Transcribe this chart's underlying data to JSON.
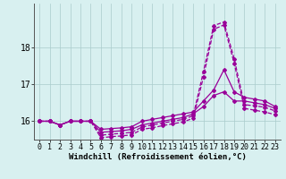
{
  "xlabel": "Windchill (Refroidissement éolien,°C)",
  "bg_color": "#d8f0f0",
  "line_color": "#990099",
  "grid_color": "#aacccc",
  "x": [
    0,
    1,
    2,
    3,
    4,
    5,
    6,
    7,
    8,
    9,
    10,
    11,
    12,
    13,
    14,
    15,
    16,
    17,
    18,
    19,
    20,
    21,
    22,
    23
  ],
  "series": [
    [
      16.0,
      16.0,
      15.9,
      16.0,
      16.0,
      16.0,
      15.78,
      15.8,
      15.82,
      15.85,
      16.0,
      16.05,
      16.1,
      16.15,
      16.2,
      16.25,
      16.55,
      16.85,
      17.4,
      16.8,
      16.65,
      16.6,
      16.55,
      16.4
    ],
    [
      16.0,
      16.0,
      15.9,
      16.0,
      16.0,
      16.0,
      15.7,
      15.72,
      15.74,
      15.78,
      15.9,
      15.95,
      16.0,
      16.05,
      16.1,
      16.2,
      16.4,
      16.7,
      16.8,
      16.55,
      16.55,
      16.5,
      16.45,
      16.35
    ],
    [
      16.0,
      16.0,
      15.9,
      16.0,
      16.0,
      16.0,
      15.62,
      15.65,
      15.67,
      15.7,
      15.84,
      15.9,
      15.95,
      16.0,
      16.05,
      16.15,
      17.35,
      18.6,
      18.7,
      17.7,
      16.45,
      16.42,
      16.38,
      16.28
    ],
    [
      16.0,
      16.0,
      15.9,
      16.0,
      16.0,
      16.0,
      15.55,
      15.58,
      15.6,
      15.63,
      15.78,
      15.82,
      15.88,
      15.93,
      15.98,
      16.08,
      17.2,
      18.5,
      18.62,
      17.58,
      16.35,
      16.3,
      16.25,
      16.18
    ]
  ],
  "ylim": [
    15.5,
    19.2
  ],
  "yticks": [
    16,
    17,
    18
  ],
  "xlim": [
    -0.5,
    23.5
  ],
  "xticks": [
    0,
    1,
    2,
    3,
    4,
    5,
    6,
    7,
    8,
    9,
    10,
    11,
    12,
    13,
    14,
    15,
    16,
    17,
    18,
    19,
    20,
    21,
    22,
    23
  ],
  "xlabel_fontsize": 6.5,
  "tick_fontsize": 6,
  "line_width": 0.9,
  "marker": "D",
  "marker_size": 2.0
}
